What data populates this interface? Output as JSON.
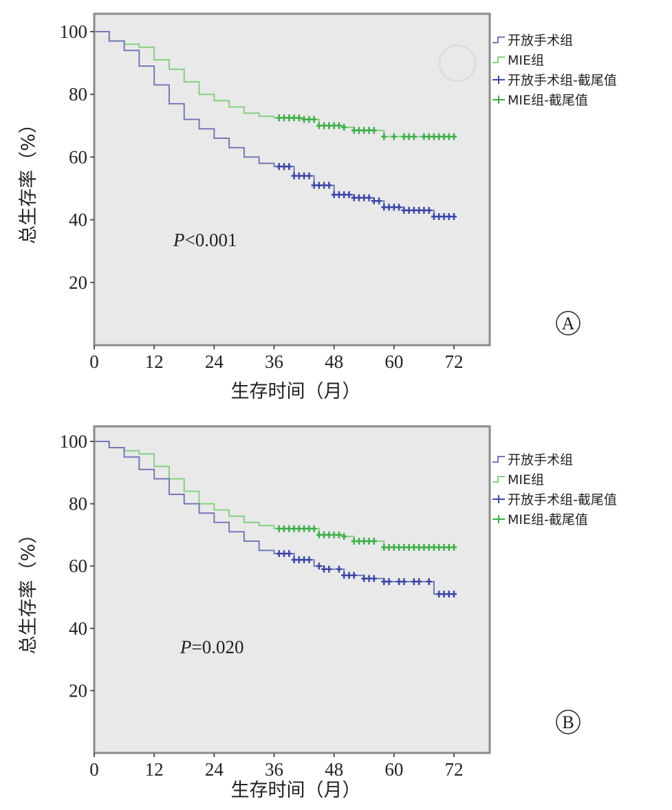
{
  "colors": {
    "open_line": "#7478b8",
    "open_censor": "#3b45a6",
    "mie_line": "#86cf82",
    "mie_censor": "#3cae48",
    "plot_bg": "#e9e9e9",
    "border": "#8a8a8a"
  },
  "chart_data": [
    {
      "type": "line",
      "panel_label": "A",
      "xlabel": "生存时间（月）",
      "ylabel": "总生存率（%）",
      "xticks": [
        "0",
        "12",
        "24",
        "36",
        "48",
        "60",
        "72"
      ],
      "yticks": [
        "20",
        "40",
        "60",
        "80",
        "100"
      ],
      "xlim": [
        0,
        79
      ],
      "ylim": [
        0,
        105
      ],
      "annotation": {
        "italic": "P",
        "text": "<0.001"
      },
      "legend": [
        "开放手术组",
        "MIE组",
        "开放手术组-截尾值",
        "MIE组-截尾值"
      ],
      "legend_position": "right",
      "series": [
        {
          "name": "开放手术组",
          "x": [
            0,
            3,
            6,
            9,
            12,
            15,
            18,
            21,
            24,
            27,
            30,
            33,
            36,
            40,
            44,
            48,
            52,
            56,
            58,
            62,
            66,
            68,
            72
          ],
          "y": [
            100,
            97,
            94,
            89,
            83,
            77,
            72,
            69,
            66,
            63,
            60,
            58,
            57,
            54,
            51,
            48,
            47,
            46,
            44,
            43,
            43,
            41,
            41
          ],
          "censor_x": [
            37,
            38,
            39,
            40,
            41,
            42,
            43,
            44,
            45,
            46,
            47,
            48,
            49,
            50,
            51,
            52,
            53,
            54,
            55,
            56,
            57,
            58,
            59,
            60,
            61,
            62,
            63,
            64,
            65,
            66,
            67,
            68,
            69,
            70,
            71,
            72
          ]
        },
        {
          "name": "MIE组",
          "x": [
            0,
            3,
            6,
            9,
            12,
            15,
            18,
            21,
            24,
            27,
            30,
            33,
            36,
            42,
            45,
            50,
            52,
            57,
            58,
            72
          ],
          "y": [
            100,
            97,
            96,
            95,
            91,
            88,
            84,
            80,
            78,
            76,
            74,
            73,
            72.5,
            72,
            70,
            69.5,
            68.5,
            68.5,
            66.5,
            66.5
          ],
          "censor_x": [
            37,
            38,
            39,
            40,
            41,
            42,
            43,
            44,
            45,
            46,
            47,
            48,
            49,
            50,
            52,
            53,
            54,
            55,
            56,
            58,
            60,
            62,
            63,
            64,
            66,
            67,
            68,
            69,
            70,
            71,
            72
          ]
        }
      ]
    },
    {
      "type": "line",
      "panel_label": "B",
      "xlabel": "生存时间（月）",
      "ylabel": "总生存率（%）",
      "xticks": [
        "0",
        "12",
        "24",
        "36",
        "48",
        "60",
        "72"
      ],
      "yticks": [
        "20",
        "40",
        "60",
        "80",
        "100"
      ],
      "xlim": [
        0,
        79
      ],
      "ylim": [
        0,
        105
      ],
      "annotation": {
        "italic": "P",
        "text": "=0.020"
      },
      "legend": [
        "开放手术组",
        "MIE组",
        "开放手术组-截尾值",
        "MIE组-截尾值"
      ],
      "legend_position": "right",
      "series": [
        {
          "name": "开放手术组",
          "x": [
            0,
            3,
            6,
            9,
            12,
            15,
            18,
            21,
            24,
            27,
            30,
            33,
            36,
            40,
            44,
            46,
            50,
            54,
            58,
            63,
            68,
            72
          ],
          "y": [
            100,
            98,
            95,
            91,
            88,
            83,
            80,
            77,
            74,
            71,
            68,
            65,
            64,
            62,
            60,
            59,
            57,
            56,
            55,
            55,
            51,
            51
          ],
          "censor_x": [
            37,
            38,
            39,
            40,
            41,
            42,
            43,
            45,
            46,
            47,
            49,
            50,
            51,
            52,
            54,
            55,
            56,
            58,
            59,
            61,
            62,
            64,
            65,
            67,
            69,
            70,
            71,
            72
          ]
        },
        {
          "name": "MIE组",
          "x": [
            0,
            3,
            6,
            9,
            12,
            15,
            18,
            21,
            24,
            27,
            30,
            33,
            36,
            42,
            45,
            50,
            52,
            57,
            58,
            72
          ],
          "y": [
            100,
            98,
            97,
            96,
            92,
            88,
            84,
            80,
            78,
            76,
            74,
            73,
            72,
            72,
            70,
            69.5,
            68,
            68,
            66,
            66
          ],
          "censor_x": [
            37,
            38,
            39,
            40,
            41,
            42,
            43,
            44,
            45,
            46,
            47,
            48,
            49,
            50,
            52,
            53,
            54,
            55,
            56,
            58,
            59,
            60,
            61,
            62,
            63,
            64,
            65,
            66,
            67,
            68,
            69,
            70,
            71,
            72
          ]
        }
      ]
    }
  ]
}
